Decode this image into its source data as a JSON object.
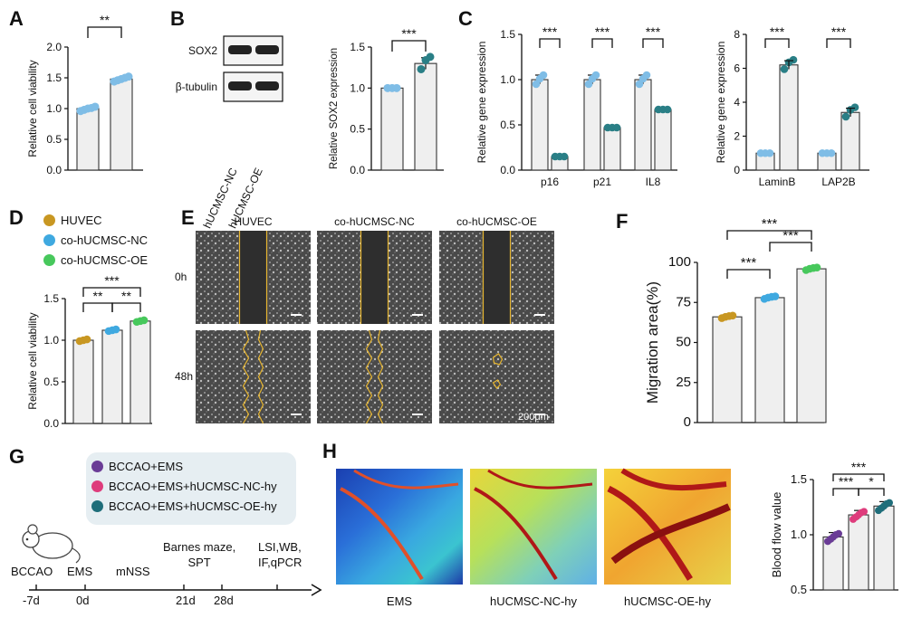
{
  "panels": {
    "A": "A",
    "B": "B",
    "C": "C",
    "D": "D",
    "E": "E",
    "F": "F",
    "G": "G",
    "H": "H"
  },
  "colors": {
    "light_blue": "#7fbde6",
    "teal": "#2a7f86",
    "gold": "#c89722",
    "cyan": "#3fa9e0",
    "green": "#47c85c",
    "purple": "#6a3c96",
    "pink": "#de3c7c",
    "dteal": "#1f6e7a",
    "bar_fill": "#efefef"
  },
  "chart_data": [
    {
      "id": "A",
      "type": "bar",
      "categories": [
        "",
        ""
      ],
      "values": [
        1.0,
        1.48
      ],
      "points": [
        [
          0.96,
          0.98,
          1.0,
          1.01,
          1.03
        ],
        [
          1.44,
          1.46,
          1.48,
          1.5,
          1.52
        ]
      ],
      "errors": [
        0.03,
        0.03
      ],
      "ylabel": "Relative cell viability",
      "ylim": [
        0,
        2.0
      ],
      "yticks": [
        "0.0",
        "0.5",
        "1.0",
        "1.5",
        "2.0"
      ],
      "sig": [
        "**"
      ],
      "dot_colors": [
        "light_blue",
        "light_blue"
      ]
    },
    {
      "id": "B",
      "type": "bar",
      "categories": [
        "hUCMSC-NC",
        "hUCMSC-OE"
      ],
      "values": [
        1.0,
        1.3
      ],
      "points": [
        [
          1.0,
          1.0,
          1.0
        ],
        [
          1.23,
          1.34,
          1.38
        ]
      ],
      "errors": [
        0.0,
        0.07
      ],
      "ylabel": "Relative SOX2 expression",
      "ylim": [
        0,
        1.5
      ],
      "yticks": [
        "0.0",
        "0.5",
        "1.0",
        "1.5"
      ],
      "sig": [
        "***"
      ],
      "dot_colors": [
        "light_blue",
        "teal"
      ],
      "blot_labels": [
        "SOX2",
        "β-tubulin"
      ]
    },
    {
      "id": "C1",
      "type": "bar",
      "groups": [
        "p16",
        "p21",
        "IL8"
      ],
      "series": [
        {
          "values": [
            1.0,
            1.0,
            1.0
          ]
        },
        {
          "values": [
            0.15,
            0.47,
            0.67
          ]
        }
      ],
      "ylabel": "Relative gene expression",
      "ylim": [
        0,
        1.5
      ],
      "yticks": [
        "0.0",
        "0.5",
        "1.0",
        "1.5"
      ],
      "sig": [
        "***",
        "***",
        "***"
      ]
    },
    {
      "id": "C2",
      "type": "bar",
      "groups": [
        "LaminB",
        "LAP2B"
      ],
      "series": [
        {
          "values": [
            1.0,
            1.0
          ]
        },
        {
          "values": [
            6.2,
            3.4
          ]
        }
      ],
      "ylabel": "Relative gene expression",
      "ylim": [
        0,
        8
      ],
      "yticks": [
        "0",
        "2",
        "4",
        "6",
        "8"
      ],
      "sig": [
        "***",
        "***"
      ]
    },
    {
      "id": "D",
      "type": "bar",
      "categories": [
        "HUVEC",
        "co-hUCMSC-NC",
        "co-hUCMSC-OE"
      ],
      "values": [
        1.0,
        1.12,
        1.23
      ],
      "ylabel": "Relative cell viability",
      "ylim": [
        0,
        1.5
      ],
      "yticks": [
        "0.0",
        "0.5",
        "1.0",
        "1.5"
      ],
      "sig": [
        "**",
        "**",
        "***"
      ],
      "legend": [
        "HUVEC",
        "co-hUCMSC-NC",
        "co-hUCMSC-OE"
      ]
    },
    {
      "id": "F",
      "type": "bar",
      "categories": [
        "HUVEC",
        "co-hUCMSC-NC",
        "co-hUCMSC-OE"
      ],
      "values": [
        66,
        78,
        96
      ],
      "ylabel": "Migration area(%)",
      "ylim": [
        0,
        100
      ],
      "yticks": [
        "0",
        "25",
        "50",
        "75",
        "100"
      ],
      "sig": [
        "***",
        "***",
        "***"
      ]
    },
    {
      "id": "H",
      "type": "bar",
      "categories": [
        "EMS",
        "hUCMSC-NC-hy",
        "hUCMSC-OE-hy"
      ],
      "values": [
        0.98,
        1.18,
        1.26
      ],
      "ylabel": "Blood flow value",
      "ylim": [
        0.5,
        1.5
      ],
      "yticks": [
        "0.5",
        "1.0",
        "1.5"
      ],
      "sig": [
        "***",
        "***",
        "*"
      ]
    }
  ],
  "panelE": {
    "cols": [
      "HUVEC",
      "co-hUCMSC-NC",
      "co-hUCMSC-OE"
    ],
    "rows": [
      "0h",
      "48h"
    ],
    "scale": "200μm"
  },
  "panelG": {
    "legend": [
      "BCCAO+EMS",
      "BCCAO+EMS+hUCMSC-NC-hy",
      "BCCAO+EMS+hUCMSC-OE-hy"
    ],
    "events": [
      "BCCAO",
      "EMS",
      "mNSS",
      "Barnes maze,\nSPT",
      "LSI,WB,\nIF,qPCR"
    ],
    "days": [
      "-7d",
      "0d",
      "21d",
      "28d"
    ]
  },
  "panelH": {
    "labels": [
      "EMS",
      "hUCMSC-NC-hy",
      "hUCMSC-OE-hy"
    ]
  }
}
